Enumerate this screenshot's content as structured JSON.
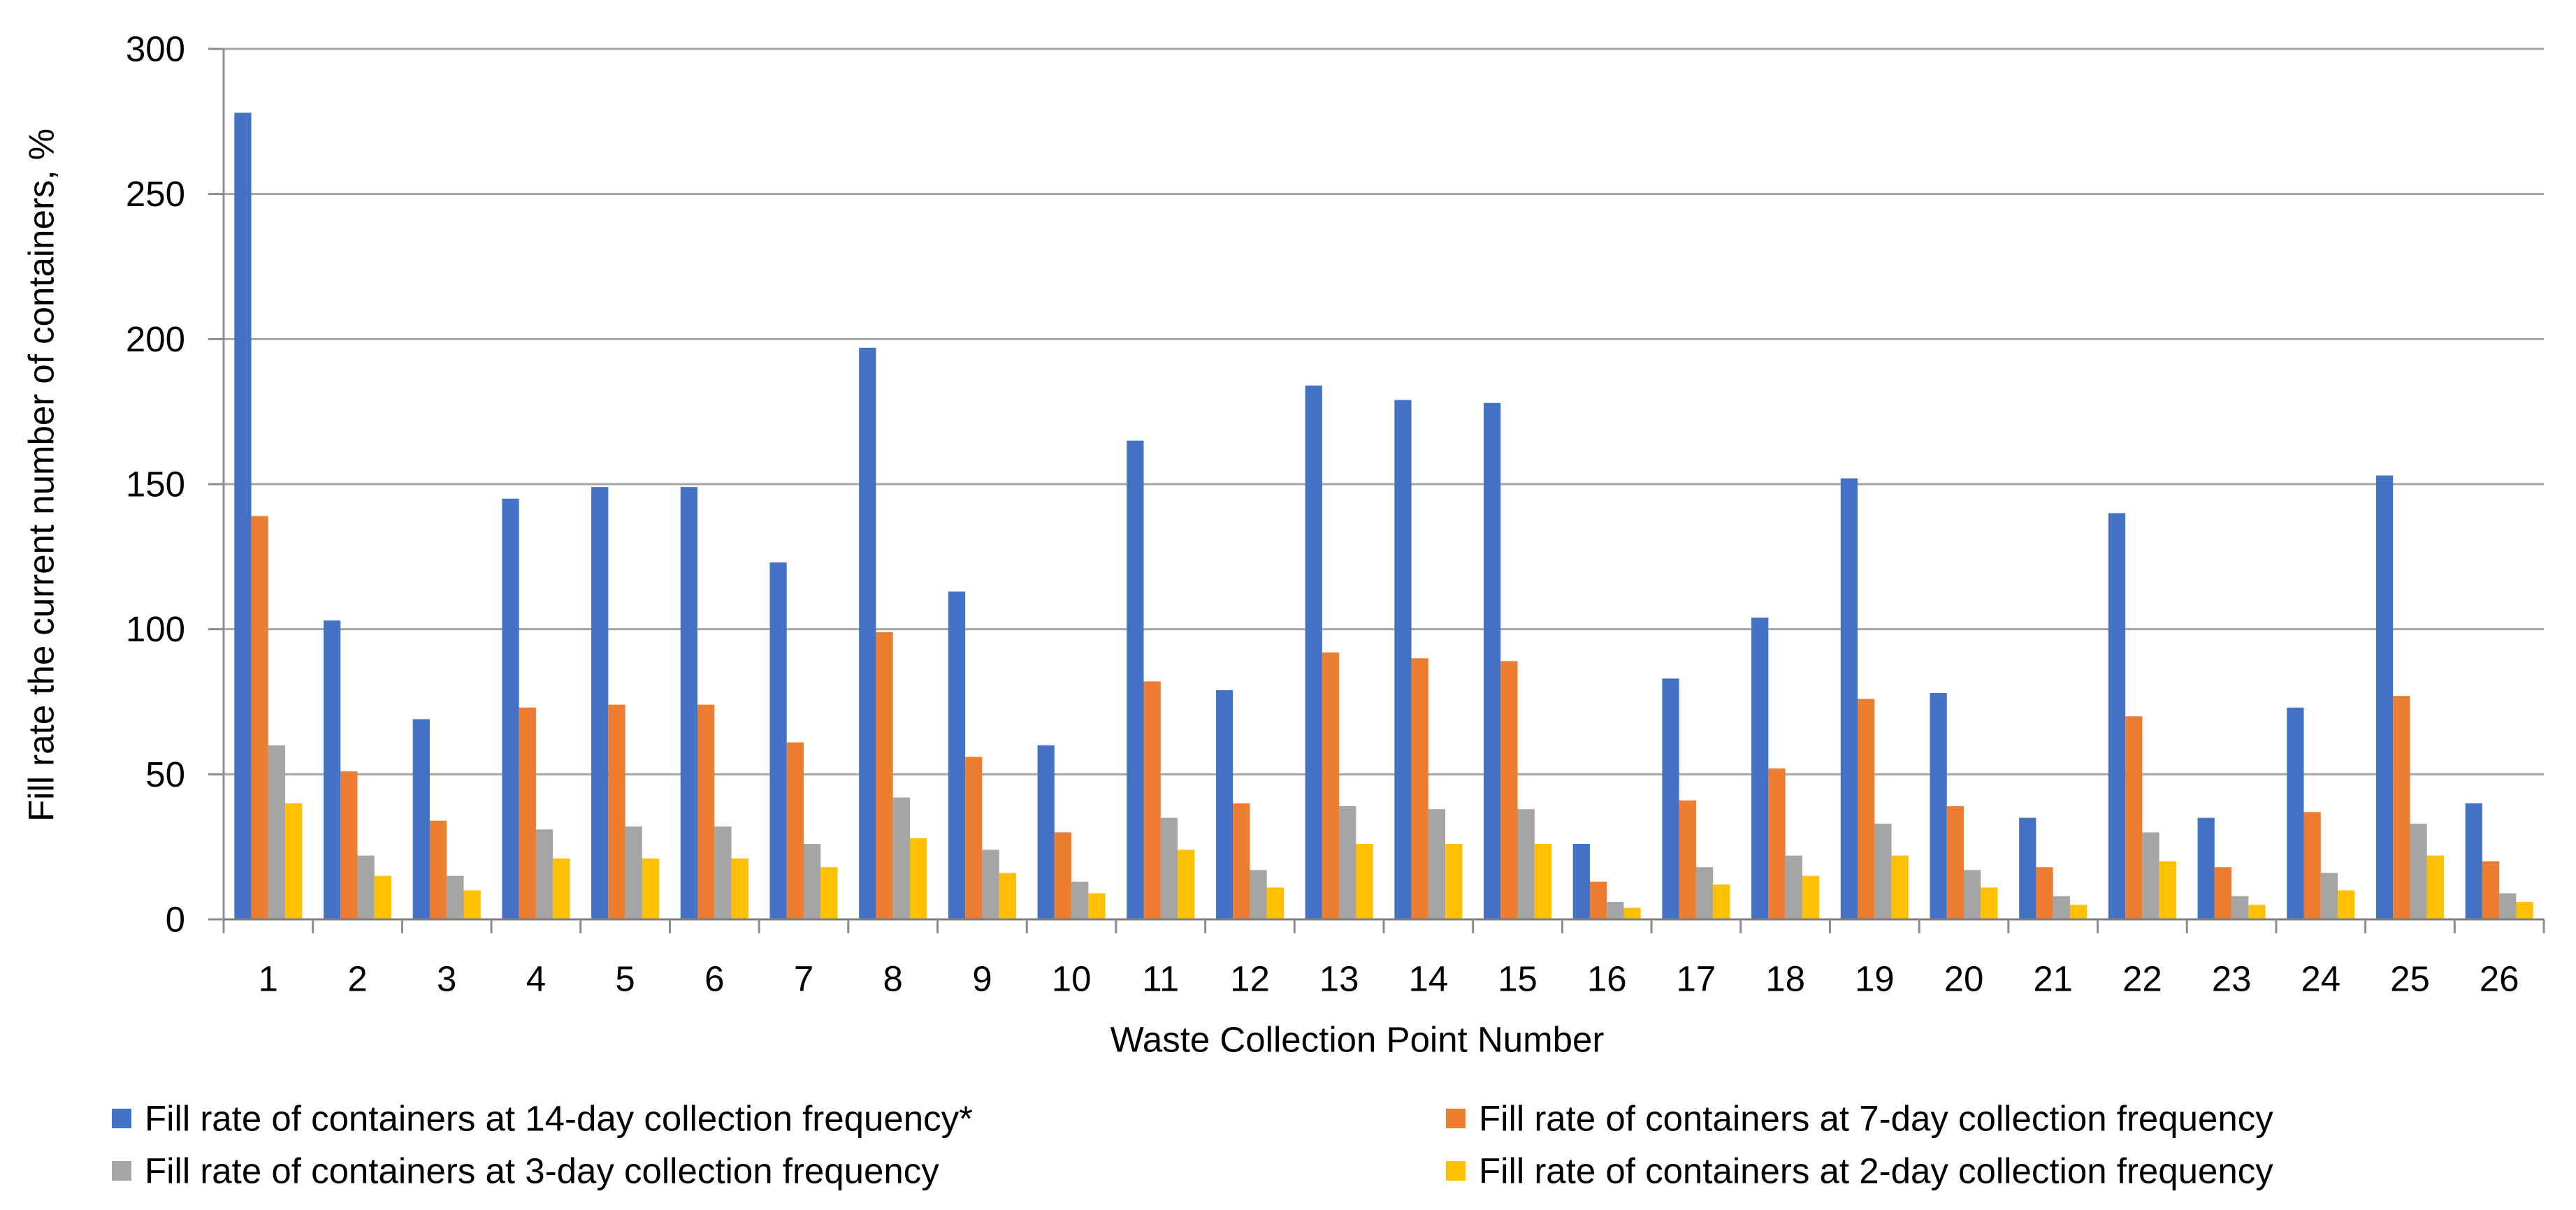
{
  "chart_data": {
    "type": "bar",
    "title": "",
    "xlabel": "Waste Collection Point Number",
    "ylabel": "Fill rate the current number of containers, %",
    "ylim": [
      0,
      300
    ],
    "yticks": [
      0,
      50,
      100,
      150,
      200,
      250,
      300
    ],
    "grid": true,
    "legend_position": "bottom",
    "categories": [
      "1",
      "2",
      "3",
      "4",
      "5",
      "6",
      "7",
      "8",
      "9",
      "10",
      "11",
      "12",
      "13",
      "14",
      "15",
      "16",
      "17",
      "18",
      "19",
      "20",
      "21",
      "22",
      "23",
      "24",
      "25",
      "26"
    ],
    "series": [
      {
        "name": "Fill rate of containers at 14-day collection frequency*",
        "color": "#4472C4",
        "values": [
          278,
          103,
          69,
          145,
          149,
          149,
          123,
          197,
          113,
          60,
          165,
          79,
          184,
          179,
          178,
          26,
          83,
          104,
          152,
          78,
          35,
          140,
          35,
          73,
          153,
          40
        ]
      },
      {
        "name": "Fill rate of containers at 7-day collection frequency",
        "color": "#ED7D31",
        "values": [
          139,
          51,
          34,
          73,
          74,
          74,
          61,
          99,
          56,
          30,
          82,
          40,
          92,
          90,
          89,
          13,
          41,
          52,
          76,
          39,
          18,
          70,
          18,
          37,
          77,
          20
        ]
      },
      {
        "name": "Fill rate of containers at 3-day collection frequency",
        "color": "#A5A5A5",
        "values": [
          60,
          22,
          15,
          31,
          32,
          32,
          26,
          42,
          24,
          13,
          35,
          17,
          39,
          38,
          38,
          6,
          18,
          22,
          33,
          17,
          8,
          30,
          8,
          16,
          33,
          9
        ]
      },
      {
        "name": "Fill rate of containers at 2-day collection frequency",
        "color": "#FFC000",
        "values": [
          40,
          15,
          10,
          21,
          21,
          21,
          18,
          28,
          16,
          9,
          24,
          11,
          26,
          26,
          26,
          4,
          12,
          15,
          22,
          11,
          5,
          20,
          5,
          10,
          22,
          6
        ]
      }
    ]
  }
}
